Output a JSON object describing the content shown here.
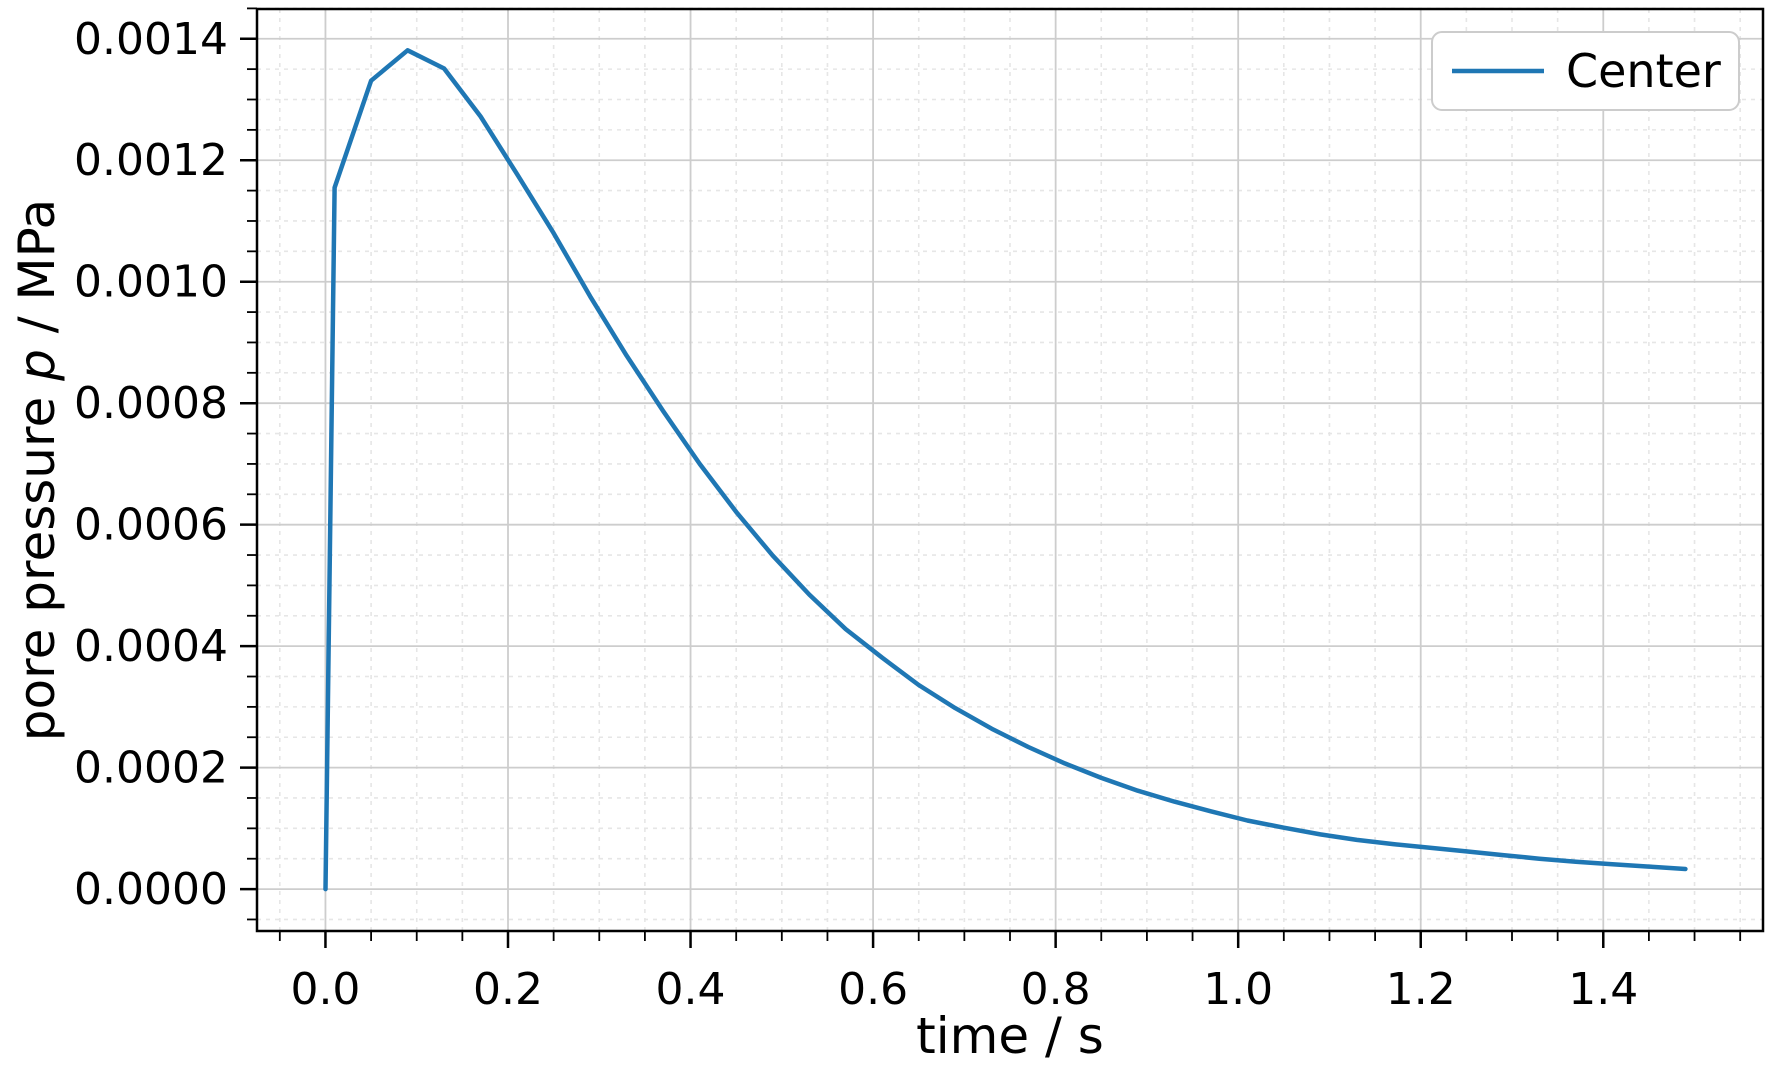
{
  "figure": {
    "background": "#ffffff",
    "line_color": "#1f77b4",
    "grid_major_color": "#cdcdcd",
    "grid_minor_color": "#e6e6e6",
    "spine_color": "#000000",
    "tick_color": "#000000",
    "text_color": "#000000"
  },
  "axes": {
    "xlabel": "time / s",
    "ylabel_prefix": "pore pressure ",
    "ylabel_symbol": "p",
    "ylabel_suffix": " / MPa"
  },
  "legend": {
    "label": "Center",
    "position": "upper right"
  },
  "chart_data": {
    "type": "line",
    "title": "",
    "xlabel": "time / s",
    "ylabel": "pore pressure p / MPa",
    "xlim": [
      -0.075,
      1.575
    ],
    "ylim": [
      -6.9e-05,
      0.001449
    ],
    "grid": "major solid, minor dashed",
    "legend_position": "upper right",
    "x_major_ticks": [
      0.0,
      0.2,
      0.4,
      0.6,
      0.8,
      1.0,
      1.2,
      1.4
    ],
    "x_tick_labels": [
      "0.0",
      "0.2",
      "0.4",
      "0.6",
      "0.8",
      "1.0",
      "1.2",
      "1.4"
    ],
    "x_minor_step": 0.05,
    "y_major_ticks": [
      0.0,
      0.0002,
      0.0004,
      0.0006,
      0.0008,
      0.001,
      0.0012,
      0.0014
    ],
    "y_tick_labels": [
      "0.0000",
      "0.0002",
      "0.0004",
      "0.0006",
      "0.0008",
      "0.0010",
      "0.0012",
      "0.0014"
    ],
    "y_minor_step": 5e-05,
    "series": [
      {
        "name": "Center",
        "color": "#1f77b4",
        "x": [
          0.0,
          0.01,
          0.05,
          0.09,
          0.13,
          0.17,
          0.21,
          0.25,
          0.29,
          0.33,
          0.37,
          0.41,
          0.45,
          0.49,
          0.53,
          0.57,
          0.61,
          0.65,
          0.69,
          0.73,
          0.77,
          0.81,
          0.85,
          0.89,
          0.93,
          0.97,
          1.01,
          1.05,
          1.09,
          1.13,
          1.17,
          1.21,
          1.25,
          1.29,
          1.33,
          1.37,
          1.41,
          1.45,
          1.49
        ],
        "y": [
          0.0,
          0.001155,
          0.001331,
          0.001381,
          0.001351,
          0.001272,
          0.001177,
          0.00108,
          0.000976,
          0.000878,
          0.000787,
          0.0007,
          0.000621,
          0.000549,
          0.000485,
          0.000428,
          0.000381,
          0.000336,
          0.000298,
          0.000264,
          0.000234,
          0.000207,
          0.000183,
          0.000162,
          0.000144,
          0.000128,
          0.000113,
          0.000101,
          9e-05,
          8.1e-05,
          7.4e-05,
          6.8e-05,
          6.2e-05,
          5.6e-05,
          5e-05,
          4.5e-05,
          4.1e-05,
          3.7e-05,
          3.3e-05
        ]
      }
    ]
  }
}
